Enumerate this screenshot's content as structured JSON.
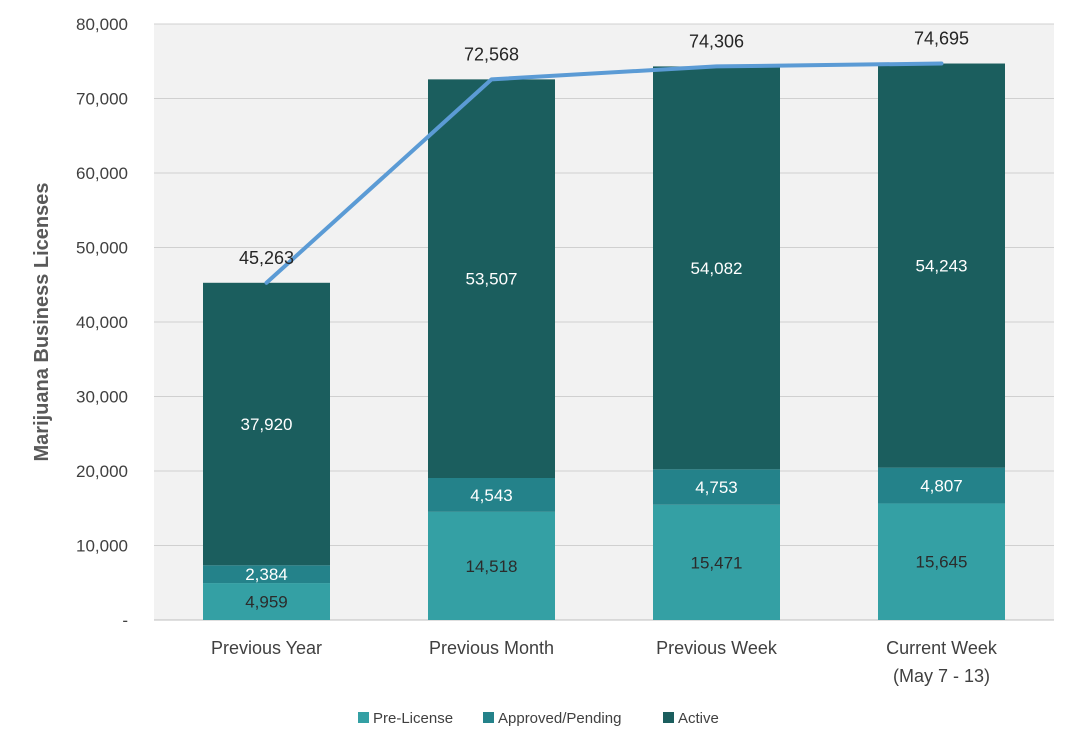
{
  "chart_data": {
    "type": "bar",
    "stacked": true,
    "categories": [
      "Previous Year",
      "Previous Month",
      "Previous Week",
      "Current Week"
    ],
    "category_sublabels": [
      "",
      "",
      "",
      "(May 7 - 13)"
    ],
    "series": [
      {
        "name": "Pre-License",
        "values": [
          4959,
          14518,
          15471,
          15645
        ],
        "labels": [
          "4,959",
          "14,518",
          "15,471",
          "15,645"
        ],
        "color": "#34a0a4"
      },
      {
        "name": "Approved/Pending",
        "values": [
          2384,
          4543,
          4753,
          4807
        ],
        "labels": [
          "2,384",
          "4,543",
          "4,753",
          "4,807"
        ],
        "color": "#24828a"
      },
      {
        "name": "Active",
        "values": [
          37920,
          53507,
          54082,
          54243
        ],
        "labels": [
          "37,920",
          "53,507",
          "54,082",
          "54,243"
        ],
        "color": "#1b5e5e"
      }
    ],
    "totals": {
      "values": [
        45263,
        72568,
        74306,
        74695
      ],
      "labels": [
        "45,263",
        "72,568",
        "74,306",
        "74,695"
      ],
      "line_color": "#5b9bd5"
    },
    "title": "",
    "xlabel": "",
    "ylabel": "Marijuana Business Licenses",
    "ylim": [
      0,
      80000
    ],
    "yticks": [
      0,
      10000,
      20000,
      30000,
      40000,
      50000,
      60000,
      70000,
      80000
    ],
    "ytick_labels": [
      "-",
      "10,000",
      "20,000",
      "30,000",
      "40,000",
      "50,000",
      "60,000",
      "70,000",
      "80,000"
    ],
    "grid": true,
    "legend_position": "bottom"
  }
}
